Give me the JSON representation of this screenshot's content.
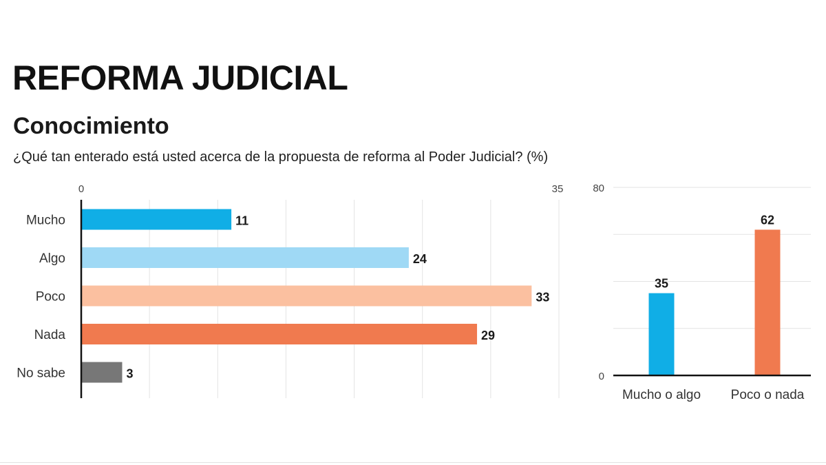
{
  "header": {
    "title": "REFORMA JUDICIAL",
    "subtitle": "Conocimiento",
    "question": "¿Qué tan enterado está usted acerca de la propuesta de reforma al Poder Judicial? (%)"
  },
  "chart_data": [
    {
      "type": "bar",
      "orientation": "horizontal",
      "categories": [
        "Mucho",
        "Algo",
        "Poco",
        "Nada",
        "No sabe"
      ],
      "values": [
        11,
        24,
        33,
        29,
        3
      ],
      "colors": [
        "#10aee6",
        "#9fd9f5",
        "#fbc0a0",
        "#f07a4f",
        "#777777"
      ],
      "xlim": [
        0,
        35
      ],
      "tick_labels": [
        "0",
        "35"
      ],
      "grid": true
    },
    {
      "type": "bar",
      "orientation": "vertical",
      "categories": [
        "Mucho o algo",
        "Poco o nada"
      ],
      "values": [
        35,
        62
      ],
      "colors": [
        "#10aee6",
        "#f07a4f"
      ],
      "ylim": [
        0,
        80
      ],
      "tick_labels": [
        "0",
        "80"
      ],
      "grid": true
    }
  ]
}
